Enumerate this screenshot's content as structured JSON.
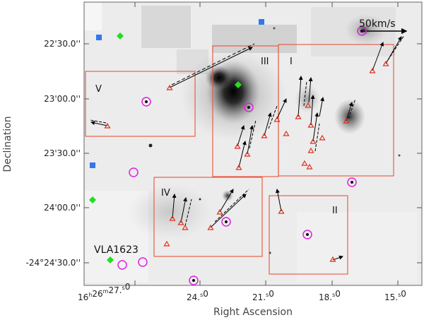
{
  "axes": {
    "xlabel": "Right Ascension",
    "ylabel": "Declination",
    "ra_ticks": [
      "16h26m27.0s",
      "24.0s",
      "21.0s",
      "18.0s",
      "15.0s"
    ],
    "ra_tick_parts": [
      {
        "h": "16",
        "m": "26",
        "s": "27.0"
      },
      {
        "s": "24.0"
      },
      {
        "s": "21.0"
      },
      {
        "s": "18.0"
      },
      {
        "s": "15.0"
      }
    ],
    "dec_ticks": [
      "22'30.0''",
      "23'00.0''",
      "23'30.0''",
      "24'00.0''",
      "-24°24'30.0''"
    ]
  },
  "regions": [
    "V",
    "III",
    "I",
    "IV",
    "II"
  ],
  "scale_label": "50km/s",
  "source_label": "VLA1623",
  "colors": {
    "region_box": "#e8553c",
    "triangle": "#e0301e",
    "circle": "#e020e0",
    "diamond": "#22dd22",
    "square": "#3377ee"
  }
}
